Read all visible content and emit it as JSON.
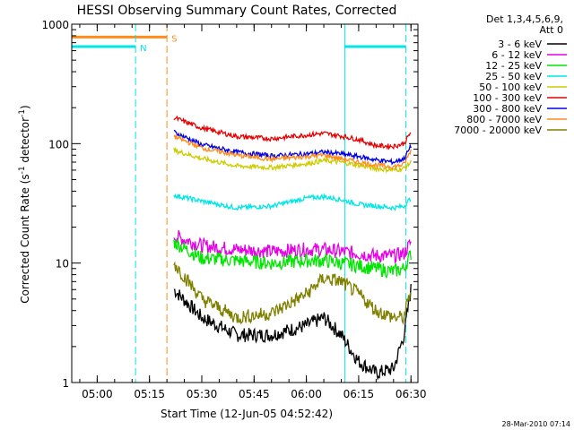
{
  "chart_data": {
    "type": "line",
    "title": "HESSI Observing Summary Count Rates, Corrected",
    "xlabel": "Start Time (12-Jun-05 04:52:42)",
    "ylabel_parts": [
      "Corrected Count Rate (s",
      "-1",
      " detector",
      "-1",
      ")"
    ],
    "y_scale": "log",
    "ylim": [
      1,
      1000
    ],
    "xlim_minutes_utc": [
      "04:52:42",
      "06:32:00"
    ],
    "x_ticks": [
      "05:00",
      "05:15",
      "05:30",
      "05:45",
      "06:00",
      "06:15",
      "06:30"
    ],
    "y_ticks": [
      "1",
      "10",
      "100",
      "1000"
    ],
    "legend_header": [
      "Det 1,3,4,5,6,9,",
      "Att 0"
    ],
    "legend_placement": "right",
    "timestamp": "28-Mar-2010 07:14",
    "flags": [
      {
        "label": "N",
        "color": "#00e6e6",
        "value": 650,
        "start": "04:52:42",
        "end": "05:11:00"
      },
      {
        "label": "S",
        "color": "#ff8c1a",
        "value": 780,
        "start": "04:52:42",
        "end": "05:20:00"
      },
      {
        "label": "",
        "color": "#00e6e6",
        "value": 650,
        "start": "06:11:00",
        "end": "06:28:30"
      }
    ],
    "vlines": [
      {
        "time": "05:11:00",
        "color": "#00e6e6"
      },
      {
        "time": "05:20:00",
        "color": "#ff8c1a"
      },
      {
        "time": "06:11:00",
        "color": "#00e6e6",
        "solid": true
      },
      {
        "time": "06:28:30",
        "color": "#00e6e6"
      }
    ],
    "x_times": [
      "05:22",
      "05:30",
      "05:40",
      "05:50",
      "06:00",
      "06:05",
      "06:10",
      "06:15",
      "06:20",
      "06:25",
      "06:28",
      "06:30"
    ],
    "series": [
      {
        "name": "3 - 6 keV",
        "color": "#000000",
        "values": [
          6,
          3.5,
          2.5,
          2.5,
          3,
          3.5,
          2.5,
          1.5,
          1.2,
          1.3,
          2.5,
          6
        ]
      },
      {
        "name": "6 - 12 keV",
        "color": "#e600e6",
        "values": [
          17,
          14,
          13,
          12.5,
          13,
          13,
          12.5,
          12,
          11.5,
          11.5,
          12,
          15
        ]
      },
      {
        "name": "12 - 25 keV",
        "color": "#00e600",
        "values": [
          15,
          11,
          10.5,
          10,
          10.5,
          10.5,
          10,
          9.5,
          9,
          8.5,
          9,
          12
        ]
      },
      {
        "name": "25 - 50 keV",
        "color": "#00e6e6",
        "values": [
          37,
          33,
          29,
          30,
          35,
          36,
          34,
          31,
          30,
          29,
          30,
          35
        ]
      },
      {
        "name": "50 - 100 keV",
        "color": "#cccc00",
        "values": [
          88,
          75,
          65,
          63,
          68,
          72,
          70,
          66,
          62,
          60,
          62,
          70
        ]
      },
      {
        "name": "100 - 300 keV",
        "color": "#e60000",
        "values": [
          165,
          135,
          115,
          110,
          118,
          122,
          116,
          108,
          96,
          95,
          100,
          125
        ]
      },
      {
        "name": "300 - 800 keV",
        "color": "#0000e6",
        "values": [
          125,
          98,
          85,
          79,
          82,
          85,
          82,
          78,
          73,
          70,
          75,
          95
        ]
      },
      {
        "name": "800 - 7000 keV",
        "color": "#ff8c1a",
        "values": [
          115,
          92,
          80,
          74,
          78,
          80,
          75,
          70,
          66,
          64,
          67,
          88
        ]
      },
      {
        "name": "7000 - 20000 keV",
        "color": "#808000",
        "values": [
          10,
          5,
          3.5,
          3.8,
          5.5,
          7.5,
          7,
          5.5,
          4,
          3.5,
          3.5,
          6
        ]
      }
    ]
  }
}
